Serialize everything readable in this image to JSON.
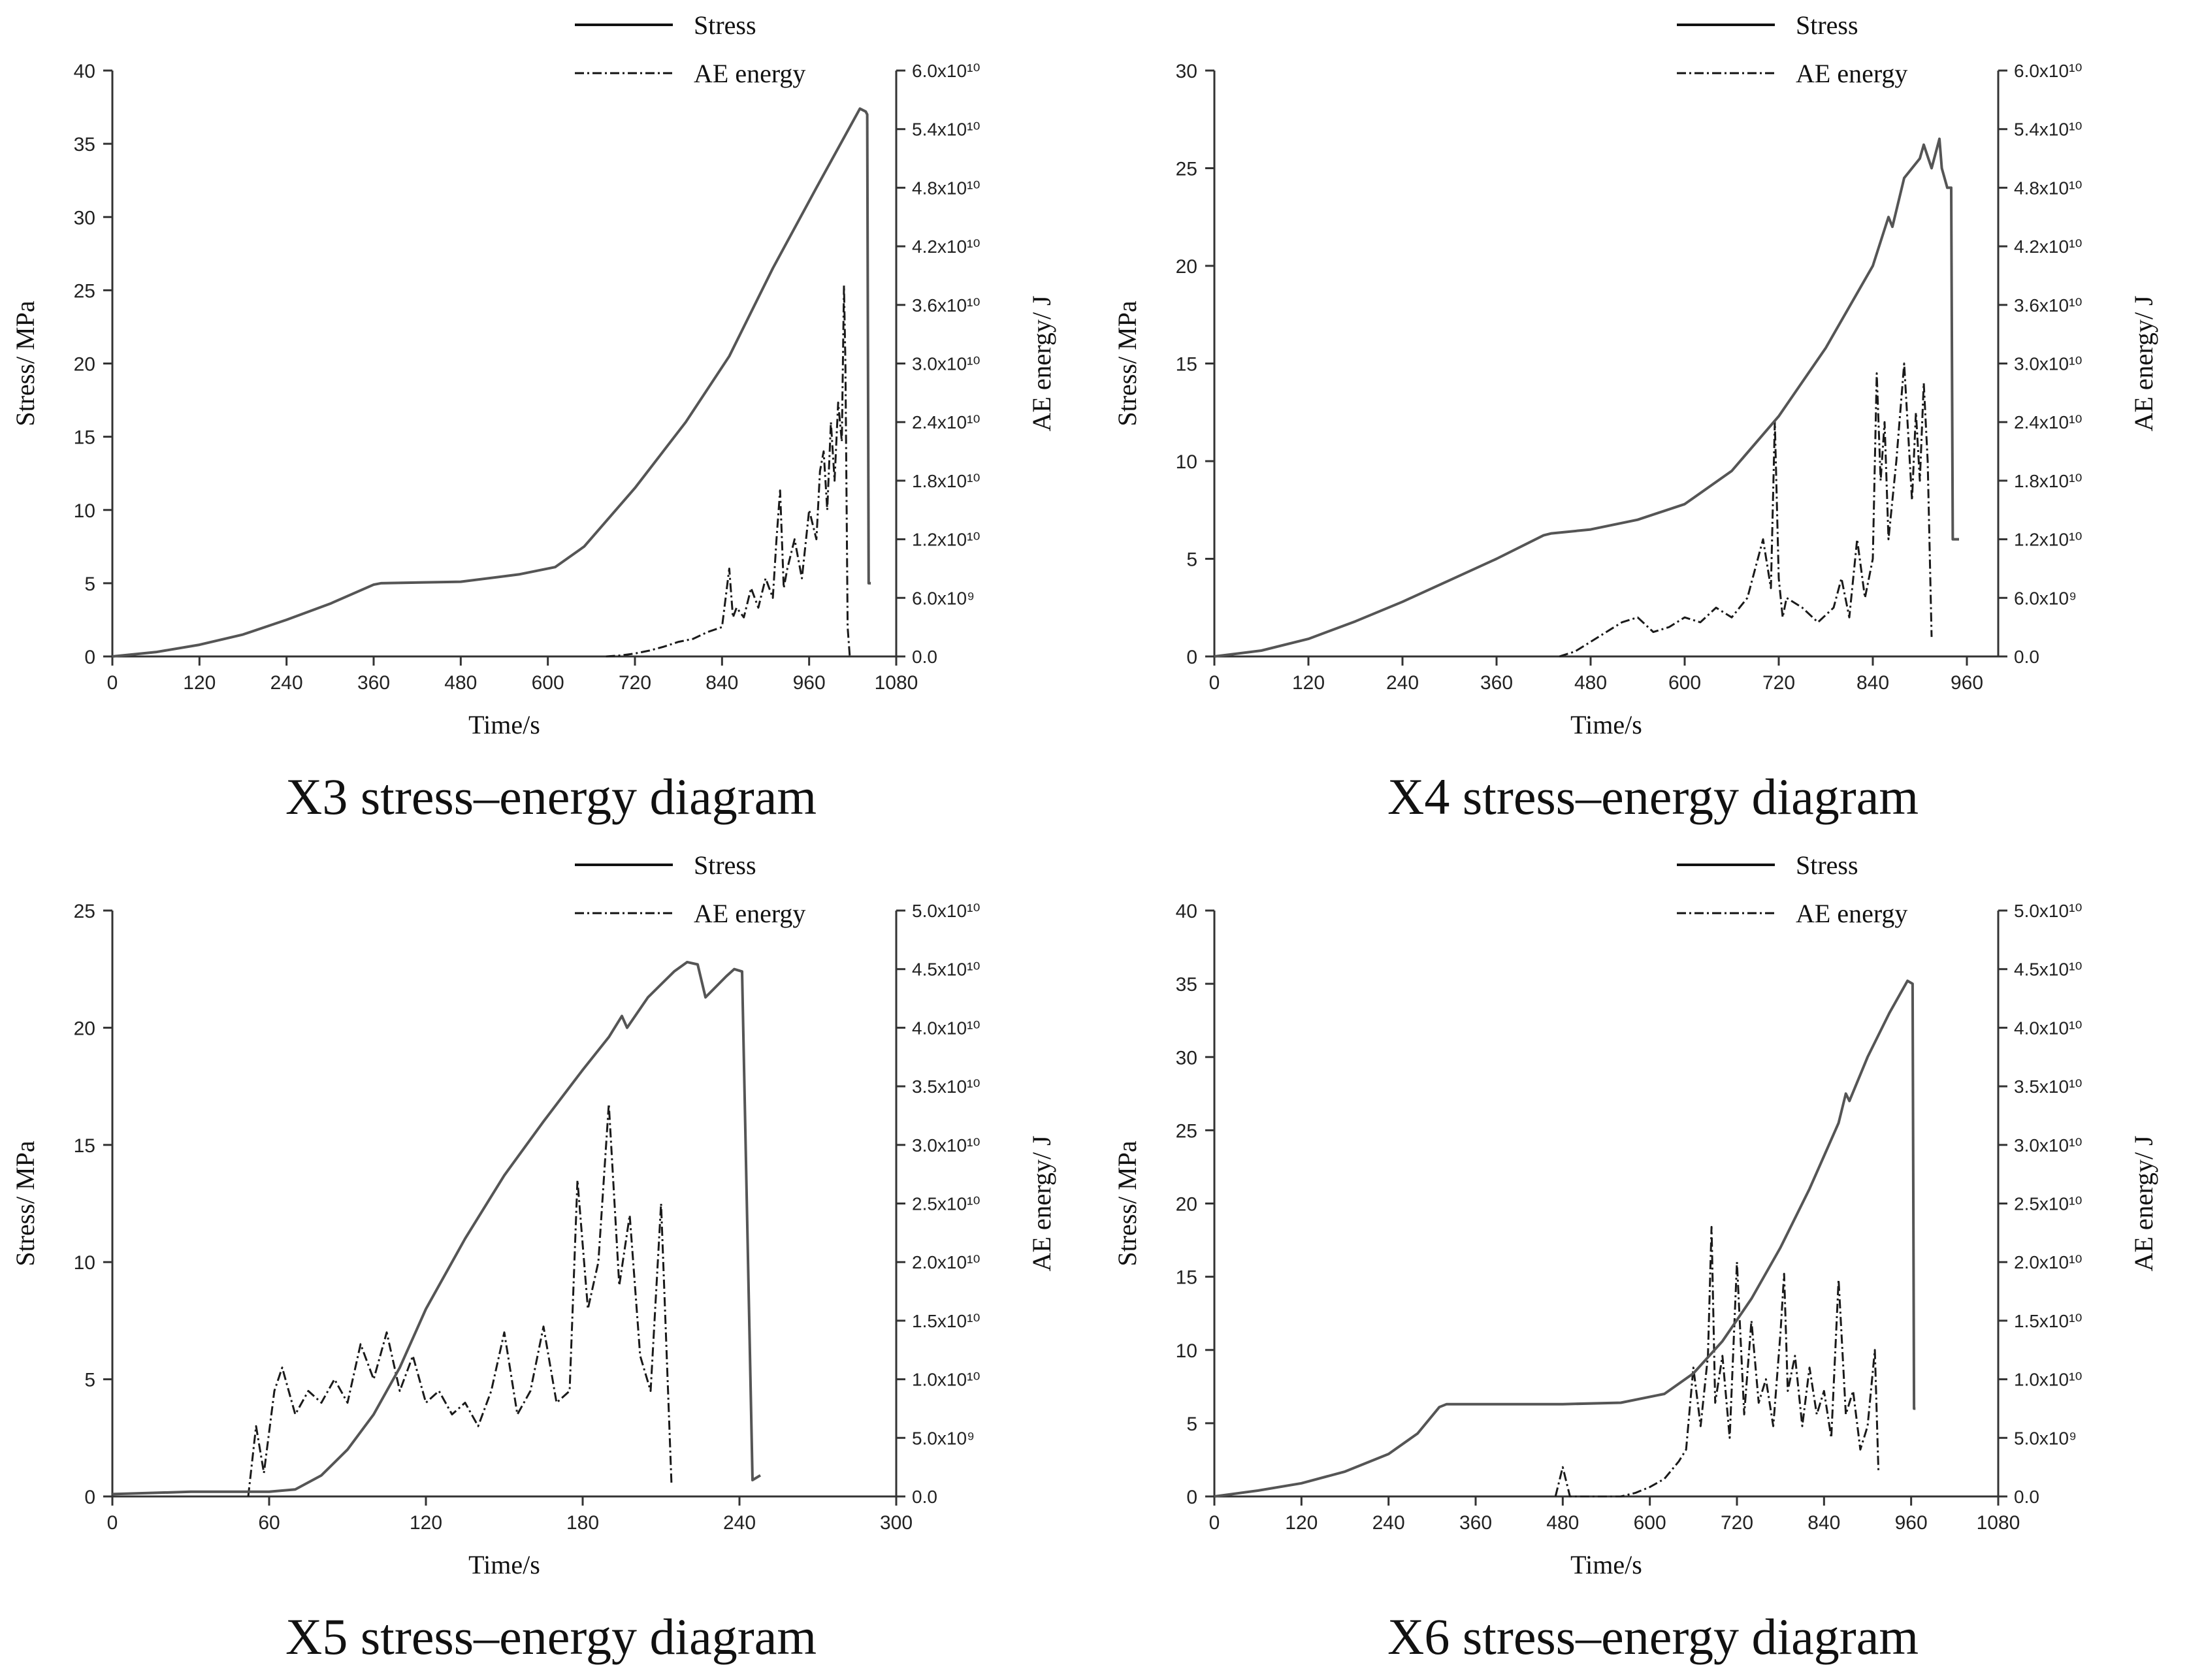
{
  "chart_data": [
    {
      "type": "line",
      "caption": "X3 stress–energy diagram",
      "xlabel": "Time/s",
      "ylabel": "Stress/ MPa",
      "y2label": "AE energy/ J",
      "xlim": [
        0,
        1080
      ],
      "xticks": [
        "0",
        "120",
        "240",
        "360",
        "480",
        "600",
        "720",
        "840",
        "960",
        "1080"
      ],
      "ylim": [
        0,
        40
      ],
      "yticks": [
        "0",
        "5",
        "10",
        "15",
        "20",
        "25",
        "30",
        "35",
        "40"
      ],
      "y2lim": [
        0,
        60000000000
      ],
      "y2ticks": [
        "0.0",
        "6.0x10⁹",
        "1.2x10¹⁰",
        "1.8x10¹⁰",
        "2.4x10¹⁰",
        "3.0x10¹⁰",
        "3.6x10¹⁰",
        "4.2x10¹⁰",
        "4.8x10¹⁰",
        "5.4x10¹⁰",
        "6.0x10¹⁰"
      ],
      "legend": [
        "Stress",
        "AE energy"
      ],
      "stress": {
        "x": [
          0,
          60,
          120,
          180,
          240,
          300,
          360,
          370,
          480,
          560,
          610,
          650,
          720,
          790,
          850,
          910,
          970,
          1030,
          1038,
          1040,
          1042,
          1045
        ],
        "y": [
          0,
          0.3,
          0.8,
          1.5,
          2.5,
          3.6,
          4.9,
          5.0,
          5.1,
          5.6,
          6.1,
          7.5,
          11.5,
          16.0,
          20.5,
          26.5,
          32.0,
          37.4,
          37.2,
          37.0,
          5.0,
          5.0
        ]
      },
      "ae": {
        "x": [
          680,
          700,
          720,
          740,
          760,
          780,
          800,
          820,
          840,
          850,
          855,
          860,
          870,
          880,
          890,
          900,
          910,
          915,
          920,
          925,
          930,
          940,
          950,
          960,
          970,
          975,
          980,
          985,
          990,
          995,
          1000,
          1005,
          1008,
          1010,
          1013,
          1016
        ],
        "y": [
          0,
          100000000,
          300000000,
          600000000,
          1000000000,
          1500000000,
          1800000000,
          2500000000,
          3000000000,
          9000000000,
          4000000000,
          5000000000,
          4000000000,
          7000000000,
          5000000000,
          8000000000,
          6000000000,
          12000000000,
          17000000000,
          7000000000,
          9000000000,
          12000000000,
          8000000000,
          15000000000,
          12000000000,
          19000000000,
          21000000000,
          15000000000,
          24000000000,
          18000000000,
          26000000000,
          22000000000,
          38000000000,
          30000000000,
          3000000000,
          0
        ]
      }
    },
    {
      "type": "line",
      "caption": "X4 stress–energy diagram",
      "xlabel": "Time/s",
      "ylabel": "Stress/ MPa",
      "y2label": "AE energy/ J",
      "xlim": [
        0,
        1000
      ],
      "xticks": [
        "0",
        "120",
        "240",
        "360",
        "480",
        "600",
        "720",
        "840",
        "960"
      ],
      "ylim": [
        0,
        30
      ],
      "yticks": [
        "0",
        "5",
        "10",
        "15",
        "20",
        "25",
        "30"
      ],
      "y2lim": [
        0,
        60000000000
      ],
      "y2ticks": [
        "0.0",
        "6.0x10⁹",
        "1.2x10¹⁰",
        "1.8x10¹⁰",
        "2.4x10¹⁰",
        "3.0x10¹⁰",
        "3.6x10¹⁰",
        "4.2x10¹⁰",
        "4.8x10¹⁰",
        "5.4x10¹⁰",
        "6.0x10¹⁰"
      ],
      "legend": [
        "Stress",
        "AE energy"
      ],
      "stress": {
        "x": [
          0,
          60,
          120,
          180,
          240,
          300,
          360,
          420,
          430,
          480,
          540,
          600,
          660,
          720,
          780,
          840,
          860,
          865,
          880,
          900,
          905,
          915,
          925,
          928,
          935,
          940,
          942,
          944,
          950
        ],
        "y": [
          0,
          0.3,
          0.9,
          1.8,
          2.8,
          3.9,
          5.0,
          6.2,
          6.3,
          6.5,
          7.0,
          7.8,
          9.5,
          12.3,
          15.8,
          20.0,
          22.5,
          22.0,
          24.5,
          25.5,
          26.2,
          25.0,
          26.5,
          25.0,
          24.0,
          24.0,
          6.0,
          6.0,
          6.0
        ]
      },
      "ae": {
        "x": [
          440,
          460,
          480,
          500,
          520,
          540,
          560,
          580,
          600,
          620,
          640,
          660,
          680,
          700,
          710,
          715,
          720,
          725,
          730,
          750,
          770,
          790,
          800,
          810,
          820,
          830,
          840,
          845,
          850,
          855,
          860,
          870,
          880,
          890,
          895,
          900,
          905,
          910,
          915
        ],
        "y": [
          0,
          500000000,
          1500000000,
          2500000000,
          3500000000,
          4000000000,
          2500000000,
          3000000000,
          4000000000,
          3500000000,
          5000000000,
          4000000000,
          6000000000,
          12000000000,
          7000000000,
          24000000000,
          8000000000,
          4000000000,
          6000000000,
          5000000000,
          3500000000,
          5000000000,
          8000000000,
          4000000000,
          12000000000,
          6000000000,
          10000000000,
          29000000000,
          18000000000,
          24000000000,
          12000000000,
          20000000000,
          30000000000,
          16000000000,
          25000000000,
          18000000000,
          28000000000,
          20000000000,
          2000000000
        ]
      }
    },
    {
      "type": "line",
      "caption": "X5 stress–energy diagram",
      "xlabel": "Time/s",
      "ylabel": "Stress/ MPa",
      "y2label": "AE energy/ J",
      "xlim": [
        0,
        300
      ],
      "xticks": [
        "0",
        "60",
        "120",
        "180",
        "240",
        "300"
      ],
      "ylim": [
        0,
        25
      ],
      "yticks": [
        "0",
        "5",
        "10",
        "15",
        "20",
        "25"
      ],
      "y2lim": [
        0,
        50000000000
      ],
      "y2ticks": [
        "0.0",
        "5.0x10⁹",
        "1.0x10¹⁰",
        "1.5x10¹⁰",
        "2.0x10¹⁰",
        "2.5x10¹⁰",
        "3.0x10¹⁰",
        "3.5x10¹⁰",
        "4.0x10¹⁰",
        "4.5x10¹⁰",
        "5.0x10¹⁰"
      ],
      "legend": [
        "Stress",
        "AE energy"
      ],
      "stress": {
        "x": [
          0,
          30,
          60,
          70,
          80,
          90,
          100,
          110,
          120,
          135,
          150,
          165,
          180,
          190,
          195,
          197,
          205,
          215,
          220,
          224,
          227,
          235,
          238,
          241,
          245,
          248
        ],
        "y": [
          0.1,
          0.2,
          0.2,
          0.3,
          0.9,
          2.0,
          3.5,
          5.5,
          8.0,
          11.0,
          13.7,
          16.0,
          18.2,
          19.6,
          20.5,
          20.0,
          21.3,
          22.4,
          22.8,
          22.7,
          21.3,
          22.2,
          22.5,
          22.4,
          0.7,
          0.9
        ]
      },
      "ae": {
        "x": [
          52,
          55,
          58,
          62,
          65,
          70,
          75,
          80,
          85,
          90,
          95,
          100,
          105,
          110,
          115,
          120,
          125,
          130,
          135,
          140,
          145,
          150,
          155,
          160,
          165,
          170,
          175,
          178,
          182,
          186,
          190,
          194,
          198,
          202,
          206,
          210,
          214
        ],
        "y": [
          0,
          6000000000,
          2000000000,
          9000000000,
          11000000000,
          7000000000,
          9000000000,
          8000000000,
          10000000000,
          8000000000,
          13000000000,
          10000000000,
          14000000000,
          9000000000,
          12000000000,
          8000000000,
          9000000000,
          7000000000,
          8000000000,
          6000000000,
          9000000000,
          14000000000,
          7000000000,
          9000000000,
          14500000000,
          8000000000,
          9000000000,
          27000000000,
          16000000000,
          20000000000,
          33500000000,
          18000000000,
          24000000000,
          12000000000,
          9000000000,
          25000000000,
          1000000000
        ]
      }
    },
    {
      "type": "line",
      "caption": "X6 stress–energy diagram",
      "xlabel": "Time/s",
      "ylabel": "Stress/ MPa",
      "y2label": "AE energy/ J",
      "xlim": [
        0,
        1080
      ],
      "xticks": [
        "0",
        "120",
        "240",
        "360",
        "480",
        "600",
        "720",
        "840",
        "960",
        "1080"
      ],
      "ylim": [
        0,
        40
      ],
      "yticks": [
        "0",
        "5",
        "10",
        "15",
        "20",
        "25",
        "30",
        "35",
        "40"
      ],
      "y2lim": [
        0,
        50000000000
      ],
      "y2ticks": [
        "0.0",
        "5.0x10⁹",
        "1.0x10¹⁰",
        "1.5x10¹⁰",
        "2.0x10¹⁰",
        "2.5x10¹⁰",
        "3.0x10¹⁰",
        "3.5x10¹⁰",
        "4.0x10¹⁰",
        "4.5x10¹⁰",
        "5.0x10¹⁰"
      ],
      "legend": [
        "Stress",
        "AE energy"
      ],
      "stress": {
        "x": [
          0,
          60,
          120,
          180,
          240,
          280,
          310,
          320,
          400,
          480,
          560,
          620,
          660,
          700,
          740,
          780,
          820,
          860,
          870,
          875,
          900,
          930,
          955,
          962,
          964,
          966
        ],
        "y": [
          0,
          0.4,
          0.9,
          1.7,
          2.9,
          4.3,
          6.1,
          6.3,
          6.3,
          6.3,
          6.4,
          7.0,
          8.4,
          10.6,
          13.5,
          17.0,
          21.0,
          25.5,
          27.5,
          27.0,
          30.0,
          33.0,
          35.2,
          35.0,
          6.0,
          6.0
        ]
      },
      "ae": {
        "x": [
          470,
          480,
          490,
          560,
          580,
          600,
          620,
          640,
          650,
          660,
          670,
          680,
          685,
          690,
          700,
          710,
          720,
          730,
          740,
          750,
          760,
          770,
          780,
          785,
          790,
          800,
          810,
          820,
          830,
          840,
          850,
          860,
          870,
          880,
          890,
          900,
          910,
          915
        ],
        "y": [
          0,
          2500000000,
          0,
          0,
          300000000,
          800000000,
          1500000000,
          3000000000,
          4000000000,
          11000000000,
          6000000000,
          12000000000,
          23000000000,
          8000000000,
          12000000000,
          5000000000,
          20000000000,
          7000000000,
          15000000000,
          8000000000,
          10000000000,
          6000000000,
          14000000000,
          19000000000,
          9000000000,
          12000000000,
          6000000000,
          11000000000,
          7000000000,
          9000000000,
          5000000000,
          18500000000,
          7000000000,
          9000000000,
          4000000000,
          6000000000,
          12500000000,
          2000000000
        ]
      }
    }
  ]
}
